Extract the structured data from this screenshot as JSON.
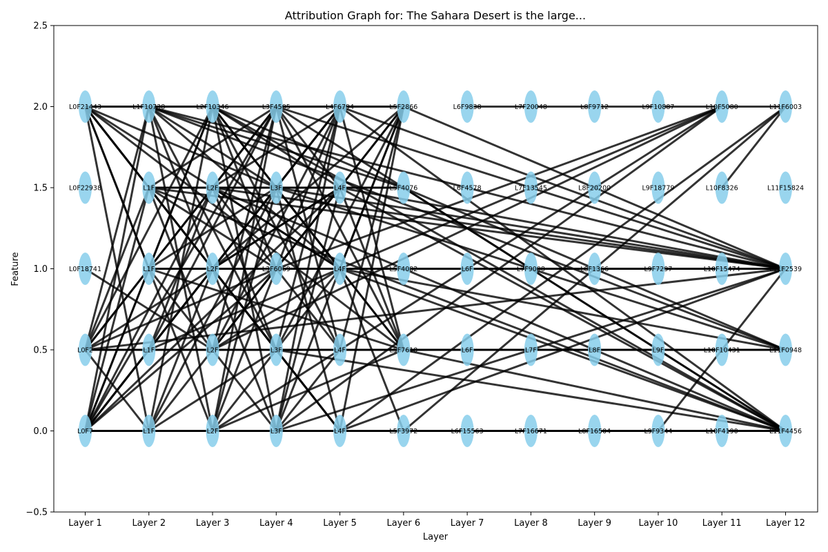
{
  "chart_data": {
    "type": "scatter",
    "title": "Attribution Graph for: The Sahara Desert is the large...",
    "xlabel": "Layer",
    "ylabel": "Feature",
    "ylim": [
      -0.5,
      2.5
    ],
    "yticks": [
      "−0.5",
      "0.0",
      "0.5",
      "1.0",
      "1.5",
      "2.0",
      "2.5"
    ],
    "categories": [
      "Layer 1",
      "Layer 2",
      "Layer 3",
      "Layer 4",
      "Layer 5",
      "Layer 6",
      "Layer 7",
      "Layer 8",
      "Layer 9",
      "Layer 10",
      "Layer 11",
      "Layer 12"
    ],
    "rows": [
      2.0,
      1.5,
      1.0,
      0.5,
      0.0
    ],
    "node_labels": [
      [
        "L0F21443",
        "L0F22938",
        "L0F18741",
        "L0F2",
        "L0F7"
      ],
      [
        "L1F10738",
        "L1F",
        "L1F",
        "L1F",
        "L1F"
      ],
      [
        "L2F10346",
        "L2F",
        "L2F",
        "L2F",
        "L2F"
      ],
      [
        "L3F4505",
        "L3F",
        "L3F6069",
        "L3F",
        "L3F"
      ],
      [
        "L4F6794",
        "L4F",
        "L4F",
        "L4F",
        "L4F"
      ],
      [
        "L5F2866",
        "L5F4076",
        "L5F4082",
        "L5F7610",
        "L5F3972"
      ],
      [
        "L6F9838",
        "L6F4578",
        "L6F",
        "L6F",
        "L6F15563"
      ],
      [
        "L7F20048",
        "L7F13545",
        "L7F9008",
        "L7F",
        "L7F16671"
      ],
      [
        "L8F9712",
        "L8F20200",
        "L8F1366",
        "L8F",
        "L8F16504"
      ],
      [
        "L9F10887",
        "L9F18779",
        "L9F7297",
        "L9F",
        "L9F9344"
      ],
      [
        "L10F5080",
        "L10F8326",
        "L10F15474",
        "L10F10431",
        "L10F4190"
      ],
      [
        "L11F6003",
        "L11F15824",
        "L11F2539",
        "L11F0948",
        "L11F4456"
      ]
    ],
    "edges": [
      [
        0,
        0,
        1,
        0
      ],
      [
        0,
        0,
        1,
        1
      ],
      [
        0,
        0,
        1,
        2
      ],
      [
        0,
        0,
        2,
        0
      ],
      [
        0,
        0,
        2,
        2
      ],
      [
        0,
        0,
        2,
        4
      ],
      [
        0,
        0,
        3,
        1
      ],
      [
        0,
        0,
        3,
        3
      ],
      [
        0,
        0,
        4,
        2
      ],
      [
        0,
        0,
        5,
        3
      ],
      [
        0,
        0,
        1,
        4
      ],
      [
        0,
        3,
        1,
        0
      ],
      [
        0,
        3,
        1,
        1
      ],
      [
        0,
        3,
        1,
        3
      ],
      [
        0,
        3,
        2,
        0
      ],
      [
        0,
        3,
        2,
        1
      ],
      [
        0,
        3,
        2,
        3
      ],
      [
        0,
        3,
        3,
        0
      ],
      [
        0,
        3,
        3,
        2
      ],
      [
        0,
        3,
        4,
        1
      ],
      [
        0,
        3,
        4,
        3
      ],
      [
        0,
        3,
        5,
        3
      ],
      [
        0,
        3,
        11,
        2
      ],
      [
        0,
        3,
        1,
        4
      ],
      [
        0,
        4,
        1,
        0
      ],
      [
        0,
        4,
        1,
        1
      ],
      [
        0,
        4,
        1,
        2
      ],
      [
        0,
        4,
        1,
        3
      ],
      [
        0,
        4,
        1,
        4
      ],
      [
        0,
        4,
        2,
        0
      ],
      [
        0,
        4,
        2,
        1
      ],
      [
        0,
        4,
        2,
        2
      ],
      [
        0,
        4,
        2,
        4
      ],
      [
        0,
        4,
        3,
        0
      ],
      [
        0,
        4,
        3,
        2
      ],
      [
        0,
        4,
        4,
        0
      ],
      [
        0,
        4,
        4,
        1
      ],
      [
        0,
        4,
        4,
        4
      ],
      [
        0,
        4,
        5,
        4
      ],
      [
        0,
        2,
        2,
        3
      ],
      [
        1,
        0,
        2,
        0
      ],
      [
        1,
        0,
        2,
        2
      ],
      [
        1,
        0,
        3,
        1
      ],
      [
        1,
        0,
        3,
        3
      ],
      [
        1,
        0,
        4,
        2
      ],
      [
        1,
        0,
        5,
        1
      ],
      [
        1,
        0,
        2,
        4
      ],
      [
        1,
        0,
        11,
        2
      ],
      [
        1,
        0,
        11,
        3
      ],
      [
        1,
        1,
        2,
        1
      ],
      [
        1,
        1,
        2,
        3
      ],
      [
        1,
        1,
        3,
        0
      ],
      [
        1,
        1,
        3,
        2
      ],
      [
        1,
        1,
        4,
        1
      ],
      [
        1,
        1,
        4,
        4
      ],
      [
        1,
        1,
        11,
        2
      ],
      [
        1,
        1,
        11,
        4
      ],
      [
        1,
        2,
        2,
        0
      ],
      [
        1,
        2,
        2,
        2
      ],
      [
        1,
        2,
        3,
        1
      ],
      [
        1,
        2,
        3,
        4
      ],
      [
        1,
        2,
        4,
        2
      ],
      [
        1,
        2,
        5,
        3
      ],
      [
        1,
        2,
        11,
        2
      ],
      [
        1,
        3,
        2,
        1
      ],
      [
        1,
        3,
        2,
        3
      ],
      [
        1,
        3,
        3,
        0
      ],
      [
        1,
        3,
        3,
        3
      ],
      [
        1,
        3,
        4,
        0
      ],
      [
        1,
        3,
        4,
        3
      ],
      [
        1,
        3,
        11,
        3
      ],
      [
        1,
        3,
        10,
        0
      ],
      [
        1,
        4,
        2,
        0
      ],
      [
        1,
        4,
        2,
        2
      ],
      [
        1,
        4,
        2,
        4
      ],
      [
        1,
        4,
        3,
        1
      ],
      [
        1,
        4,
        3,
        3
      ],
      [
        1,
        4,
        4,
        1
      ],
      [
        1,
        4,
        5,
        4
      ],
      [
        1,
        4,
        11,
        4
      ],
      [
        2,
        0,
        3,
        0
      ],
      [
        2,
        0,
        3,
        1
      ],
      [
        2,
        0,
        3,
        2
      ],
      [
        2,
        0,
        3,
        4
      ],
      [
        2,
        0,
        4,
        1
      ],
      [
        2,
        0,
        4,
        3
      ],
      [
        2,
        0,
        5,
        3
      ],
      [
        2,
        0,
        11,
        3
      ],
      [
        2,
        0,
        11,
        4
      ],
      [
        2,
        1,
        3,
        0
      ],
      [
        2,
        1,
        3,
        2
      ],
      [
        2,
        1,
        3,
        3
      ],
      [
        2,
        1,
        4,
        0
      ],
      [
        2,
        1,
        4,
        2
      ],
      [
        2,
        1,
        5,
        1
      ],
      [
        2,
        1,
        11,
        2
      ],
      [
        2,
        1,
        11,
        4
      ],
      [
        2,
        2,
        3,
        1
      ],
      [
        2,
        2,
        3,
        3
      ],
      [
        2,
        2,
        3,
        4
      ],
      [
        2,
        2,
        4,
        1
      ],
      [
        2,
        2,
        4,
        4
      ],
      [
        2,
        2,
        5,
        0
      ],
      [
        2,
        2,
        11,
        2
      ],
      [
        2,
        3,
        3,
        0
      ],
      [
        2,
        3,
        3,
        2
      ],
      [
        2,
        3,
        4,
        0
      ],
      [
        2,
        3,
        4,
        2
      ],
      [
        2,
        3,
        5,
        3
      ],
      [
        2,
        3,
        11,
        3
      ],
      [
        2,
        3,
        10,
        0
      ],
      [
        2,
        4,
        3,
        0
      ],
      [
        2,
        4,
        3,
        1
      ],
      [
        2,
        4,
        3,
        3
      ],
      [
        2,
        4,
        4,
        0
      ],
      [
        2,
        4,
        4,
        3
      ],
      [
        2,
        4,
        5,
        3
      ],
      [
        2,
        4,
        11,
        4
      ],
      [
        3,
        0,
        4,
        0
      ],
      [
        3,
        0,
        4,
        1
      ],
      [
        3,
        0,
        4,
        3
      ],
      [
        3,
        0,
        5,
        0
      ],
      [
        3,
        0,
        5,
        3
      ],
      [
        3,
        0,
        11,
        2
      ],
      [
        3,
        0,
        11,
        4
      ],
      [
        3,
        1,
        4,
        0
      ],
      [
        3,
        1,
        4,
        2
      ],
      [
        3,
        1,
        4,
        4
      ],
      [
        3,
        1,
        5,
        1
      ],
      [
        3,
        1,
        5,
        3
      ],
      [
        3,
        1,
        11,
        2
      ],
      [
        3,
        1,
        11,
        3
      ],
      [
        3,
        2,
        4,
        1
      ],
      [
        3,
        2,
        4,
        3
      ],
      [
        3,
        2,
        5,
        0
      ],
      [
        3,
        2,
        5,
        2
      ],
      [
        3,
        2,
        11,
        2
      ],
      [
        3,
        2,
        10,
        0
      ],
      [
        3,
        3,
        4,
        0
      ],
      [
        3,
        3,
        4,
        2
      ],
      [
        3,
        3,
        4,
        4
      ],
      [
        3,
        3,
        5,
        0
      ],
      [
        3,
        3,
        5,
        3
      ],
      [
        3,
        3,
        11,
        3
      ],
      [
        3,
        3,
        11,
        4
      ],
      [
        3,
        4,
        4,
        0
      ],
      [
        3,
        4,
        4,
        1
      ],
      [
        3,
        4,
        4,
        3
      ],
      [
        3,
        4,
        5,
        0
      ],
      [
        3,
        4,
        5,
        4
      ],
      [
        3,
        4,
        10,
        0
      ],
      [
        3,
        4,
        11,
        2
      ],
      [
        4,
        0,
        5,
        0
      ],
      [
        4,
        0,
        5,
        3
      ],
      [
        4,
        0,
        11,
        2
      ],
      [
        4,
        0,
        11,
        4
      ],
      [
        4,
        1,
        5,
        0
      ],
      [
        4,
        1,
        5,
        3
      ],
      [
        4,
        1,
        11,
        2
      ],
      [
        4,
        1,
        11,
        4
      ],
      [
        4,
        2,
        5,
        0
      ],
      [
        4,
        2,
        5,
        4
      ],
      [
        4,
        2,
        11,
        3
      ],
      [
        4,
        2,
        11,
        4
      ],
      [
        4,
        3,
        5,
        0
      ],
      [
        4,
        3,
        5,
        3
      ],
      [
        4,
        3,
        11,
        3
      ],
      [
        4,
        3,
        10,
        0
      ],
      [
        4,
        4,
        5,
        4
      ],
      [
        4,
        4,
        5,
        0
      ],
      [
        4,
        4,
        11,
        0
      ],
      [
        4,
        4,
        11,
        2
      ],
      [
        5,
        0,
        11,
        2
      ],
      [
        5,
        1,
        11,
        4
      ],
      [
        5,
        2,
        11,
        2
      ],
      [
        5,
        3,
        11,
        3
      ],
      [
        5,
        3,
        11,
        4
      ],
      [
        5,
        4,
        11,
        4
      ],
      [
        5,
        4,
        11,
        0
      ],
      [
        6,
        0,
        7,
        0
      ],
      [
        7,
        0,
        8,
        0
      ],
      [
        8,
        0,
        9,
        0
      ],
      [
        9,
        0,
        10,
        0
      ],
      [
        10,
        0,
        11,
        0
      ],
      [
        6,
        2,
        7,
        2
      ],
      [
        7,
        2,
        8,
        2
      ],
      [
        8,
        2,
        9,
        2
      ],
      [
        9,
        2,
        10,
        2
      ],
      [
        10,
        2,
        11,
        2
      ],
      [
        6,
        3,
        7,
        3
      ],
      [
        7,
        3,
        8,
        3
      ],
      [
        8,
        3,
        9,
        3
      ],
      [
        9,
        3,
        10,
        3
      ],
      [
        10,
        3,
        11,
        3
      ],
      [
        6,
        4,
        7,
        4
      ],
      [
        7,
        4,
        8,
        4
      ],
      [
        8,
        4,
        9,
        4
      ],
      [
        9,
        4,
        10,
        4
      ],
      [
        10,
        4,
        11,
        4
      ],
      [
        10,
        1,
        11,
        0
      ],
      [
        9,
        4,
        11,
        2
      ]
    ]
  }
}
